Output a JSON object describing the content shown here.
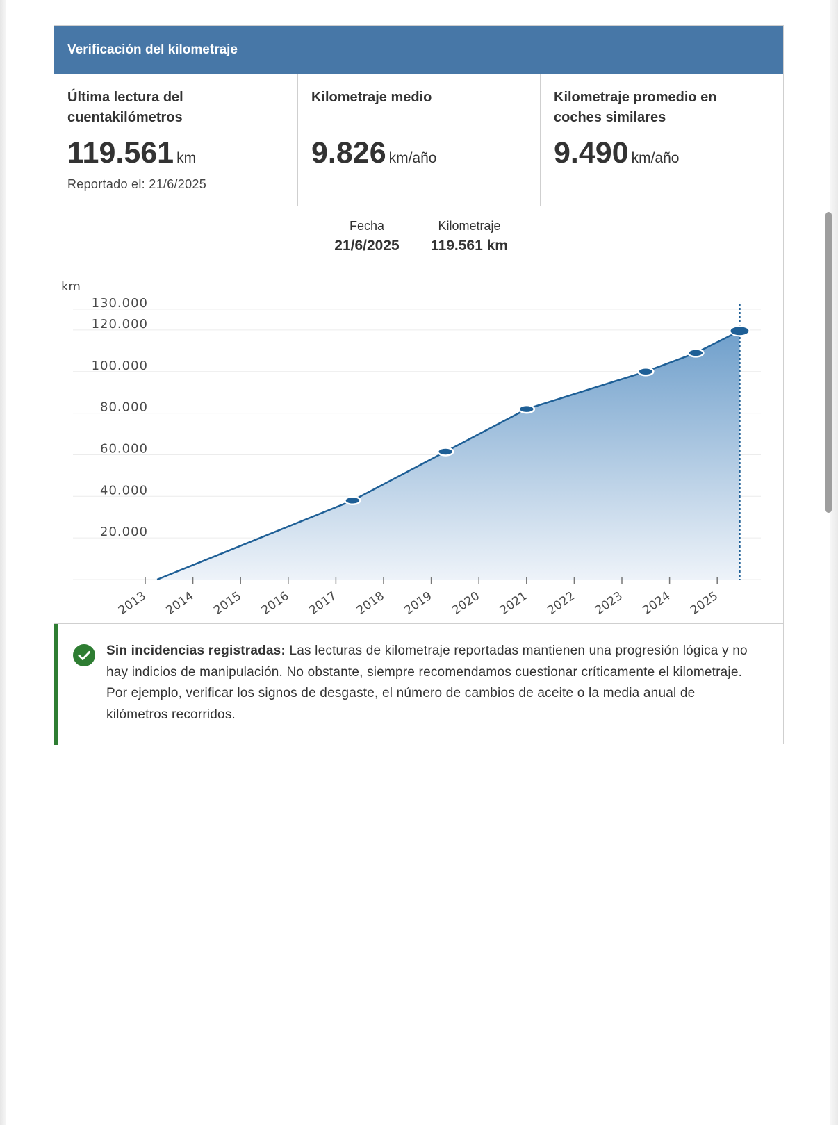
{
  "card": {
    "title": "Verificación del kilometraje"
  },
  "stats": [
    {
      "label": "Última lectura del cuentakilómetros",
      "value": "119.561",
      "unit": "km",
      "sub": "Reportado el: 21/6/2025"
    },
    {
      "label": "Kilometraje medio",
      "value": "9.826",
      "unit": "km/año",
      "sub": ""
    },
    {
      "label": "Kilometraje promedio en coches similares",
      "value": "9.490",
      "unit": "km/año",
      "sub": ""
    }
  ],
  "tooltip": {
    "date_label": "Fecha",
    "date_value": "21/6/2025",
    "km_label": "Kilometraje",
    "km_value": "119.561 km"
  },
  "chart_data": {
    "type": "area",
    "ylabel": "km",
    "y_ticks": [
      {
        "value": 20000,
        "label": "20.000"
      },
      {
        "value": 40000,
        "label": "40.000"
      },
      {
        "value": 60000,
        "label": "60.000"
      },
      {
        "value": 80000,
        "label": "80.000"
      },
      {
        "value": 100000,
        "label": "100.000"
      },
      {
        "value": 120000,
        "label": "120.000"
      },
      {
        "value": 130000,
        "label": "130.000"
      }
    ],
    "ylim": [
      0,
      130000
    ],
    "x_ticks": [
      "2013",
      "2014",
      "2015",
      "2016",
      "2017",
      "2018",
      "2019",
      "2020",
      "2021",
      "2022",
      "2023",
      "2024",
      "2025"
    ],
    "xlim": [
      2013,
      2025.5
    ],
    "grid": true,
    "series": [
      {
        "points": [
          {
            "x": 2013.25,
            "y": 0
          },
          {
            "x": 2017.35,
            "y": 38000
          },
          {
            "x": 2019.3,
            "y": 61500
          },
          {
            "x": 2021.0,
            "y": 82000
          },
          {
            "x": 2023.5,
            "y": 100000
          },
          {
            "x": 2024.55,
            "y": 109000
          },
          {
            "x": 2025.47,
            "y": 119561
          }
        ]
      }
    ],
    "selected_point_index": 6,
    "colors": {
      "line": "#1e5f96",
      "marker": "#1e5f96",
      "fill_top": "#6f9fcb",
      "fill_bottom": "#eef3f9",
      "grid": "#ececec"
    }
  },
  "notice": {
    "bold": "Sin incidencias registradas:",
    "text": " Las lecturas de kilometraje reportadas mantienen una progresión lógica y no hay indicios de manipulación. No obstante, siempre recomendamos cuestionar críticamente el kilometraje. Por ejemplo, verificar los signos de desgaste, el número de cambios de aceite o la media anual de kilómetros recorridos.",
    "icon": "check-circle-icon",
    "accent": "#2e7d32"
  }
}
